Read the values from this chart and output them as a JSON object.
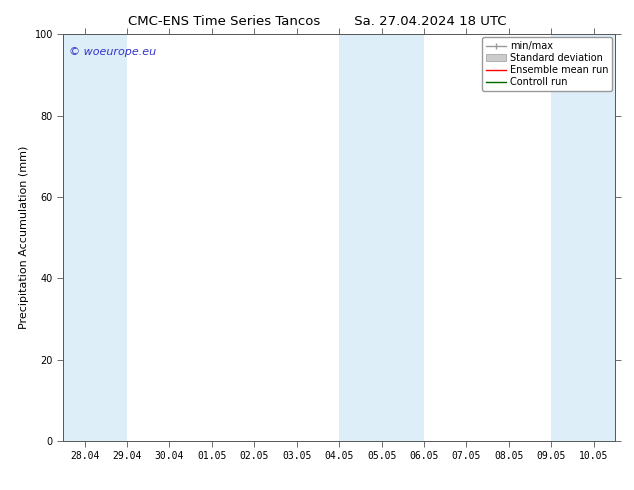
{
  "title_left": "CMC-ENS Time Series Tancos",
  "title_right": "Sa. 27.04.2024 18 UTC",
  "ylabel": "Precipitation Accumulation (mm)",
  "ylim": [
    0,
    100
  ],
  "yticks": [
    0,
    20,
    40,
    60,
    80,
    100
  ],
  "x_labels": [
    "28.04",
    "29.04",
    "30.04",
    "01.05",
    "02.05",
    "03.05",
    "04.05",
    "05.05",
    "06.05",
    "07.05",
    "08.05",
    "09.05",
    "10.05"
  ],
  "x_positions": [
    0,
    1,
    2,
    3,
    4,
    5,
    6,
    7,
    8,
    9,
    10,
    11,
    12
  ],
  "xlim": [
    -0.5,
    12.5
  ],
  "shaded_bands": [
    {
      "xmin": -0.5,
      "xmax": 1.0,
      "color": "#ddeef8"
    },
    {
      "xmin": 6.0,
      "xmax": 8.0,
      "color": "#ddeef8"
    },
    {
      "xmin": 11.0,
      "xmax": 12.5,
      "color": "#ddeef8"
    }
  ],
  "watermark_text": "© woeurope.eu",
  "watermark_color": "#3333cc",
  "legend_labels": [
    "min/max",
    "Standard deviation",
    "Ensemble mean run",
    "Controll run"
  ],
  "legend_line_colors": [
    "#999999",
    "#bbbbbb",
    "#ff0000",
    "#00aa00"
  ],
  "background_color": "#ffffff",
  "plot_bg_color": "#ffffff",
  "title_fontsize": 9.5,
  "ylabel_fontsize": 8,
  "tick_fontsize": 7,
  "legend_fontsize": 7,
  "watermark_fontsize": 8
}
